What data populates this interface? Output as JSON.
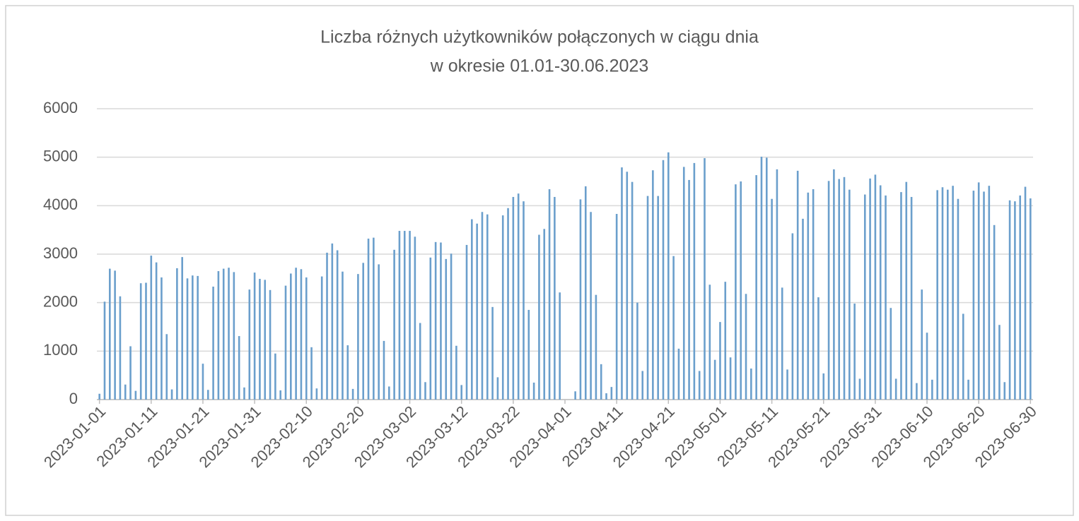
{
  "chart_data": {
    "type": "bar",
    "title": [
      "Liczba różnych użytkowników połączonych w ciągu dnia",
      "w okresie 01.01-30.06.2023"
    ],
    "categories": [
      "2023-01-01",
      null,
      null,
      null,
      null,
      null,
      null,
      null,
      null,
      null,
      "2023-01-11",
      null,
      null,
      null,
      null,
      null,
      null,
      null,
      null,
      null,
      "2023-01-21",
      null,
      null,
      null,
      null,
      null,
      null,
      null,
      null,
      null,
      "2023-01-31",
      null,
      null,
      null,
      null,
      null,
      null,
      null,
      null,
      null,
      "2023-02-10",
      null,
      null,
      null,
      null,
      null,
      null,
      null,
      null,
      null,
      "2023-02-20",
      null,
      null,
      null,
      null,
      null,
      null,
      null,
      null,
      null,
      "2023-03-02",
      null,
      null,
      null,
      null,
      null,
      null,
      null,
      null,
      null,
      "2023-03-12",
      null,
      null,
      null,
      null,
      null,
      null,
      null,
      null,
      null,
      "2023-03-22",
      null,
      null,
      null,
      null,
      null,
      null,
      null,
      null,
      null,
      "2023-04-01",
      null,
      null,
      null,
      null,
      null,
      null,
      null,
      null,
      null,
      "2023-04-11",
      null,
      null,
      null,
      null,
      null,
      null,
      null,
      null,
      null,
      "2023-04-21",
      null,
      null,
      null,
      null,
      null,
      null,
      null,
      null,
      null,
      "2023-05-01",
      null,
      null,
      null,
      null,
      null,
      null,
      null,
      null,
      null,
      "2023-05-11",
      null,
      null,
      null,
      null,
      null,
      null,
      null,
      null,
      null,
      "2023-05-21",
      null,
      null,
      null,
      null,
      null,
      null,
      null,
      null,
      null,
      "2023-05-31",
      null,
      null,
      null,
      null,
      null,
      null,
      null,
      null,
      null,
      "2023-06-10",
      null,
      null,
      null,
      null,
      null,
      null,
      null,
      null,
      null,
      "2023-06-20",
      null,
      null,
      null,
      null,
      null,
      null,
      null,
      null,
      null,
      "2023-06-30"
    ],
    "values": [
      120,
      2020,
      2700,
      2660,
      2130,
      310,
      1100,
      180,
      2400,
      2410,
      2970,
      2830,
      2520,
      1350,
      210,
      2710,
      2940,
      2500,
      2560,
      2550,
      740,
      200,
      2330,
      2650,
      2700,
      2720,
      2630,
      1310,
      250,
      2270,
      2620,
      2490,
      2470,
      2260,
      950,
      190,
      2350,
      2600,
      2720,
      2690,
      2520,
      1080,
      230,
      2540,
      3030,
      3220,
      3080,
      2640,
      1120,
      220,
      2590,
      2820,
      3320,
      3340,
      2790,
      1210,
      270,
      3090,
      3480,
      3480,
      3480,
      3360,
      1580,
      360,
      2930,
      3250,
      3240,
      2900,
      3010,
      1110,
      300,
      3190,
      3720,
      3630,
      3870,
      3820,
      1910,
      460,
      3800,
      3950,
      4180,
      4250,
      4090,
      1850,
      350,
      3400,
      3520,
      4340,
      4180,
      2210,
      0,
      0,
      170,
      4130,
      4400,
      3870,
      2160,
      730,
      130,
      260,
      3830,
      4790,
      4700,
      4490,
      2000,
      590,
      4200,
      4730,
      4200,
      4940,
      5100,
      2960,
      1050,
      4800,
      4530,
      4880,
      590,
      4980,
      2370,
      820,
      1600,
      2430,
      870,
      4440,
      4500,
      2180,
      640,
      4630,
      5010,
      4990,
      4140,
      4750,
      2310,
      620,
      3430,
      4720,
      3730,
      4270,
      4340,
      2110,
      540,
      4510,
      4750,
      4550,
      4590,
      4330,
      1980,
      430,
      4230,
      4560,
      4640,
      4420,
      4210,
      1890,
      430,
      4280,
      4490,
      4180,
      340,
      2270,
      1380,
      410,
      4320,
      4380,
      4330,
      4410,
      4140,
      1770,
      410,
      4310,
      4480,
      4290,
      4410,
      3600,
      1540,
      360,
      4110,
      4090,
      4210,
      4390,
      4150
    ],
    "color": "#6b9fcc",
    "ylim": [
      0,
      6000
    ],
    "yticks": [
      0,
      1000,
      2000,
      3000,
      4000,
      5000,
      6000
    ],
    "grid": true
  }
}
